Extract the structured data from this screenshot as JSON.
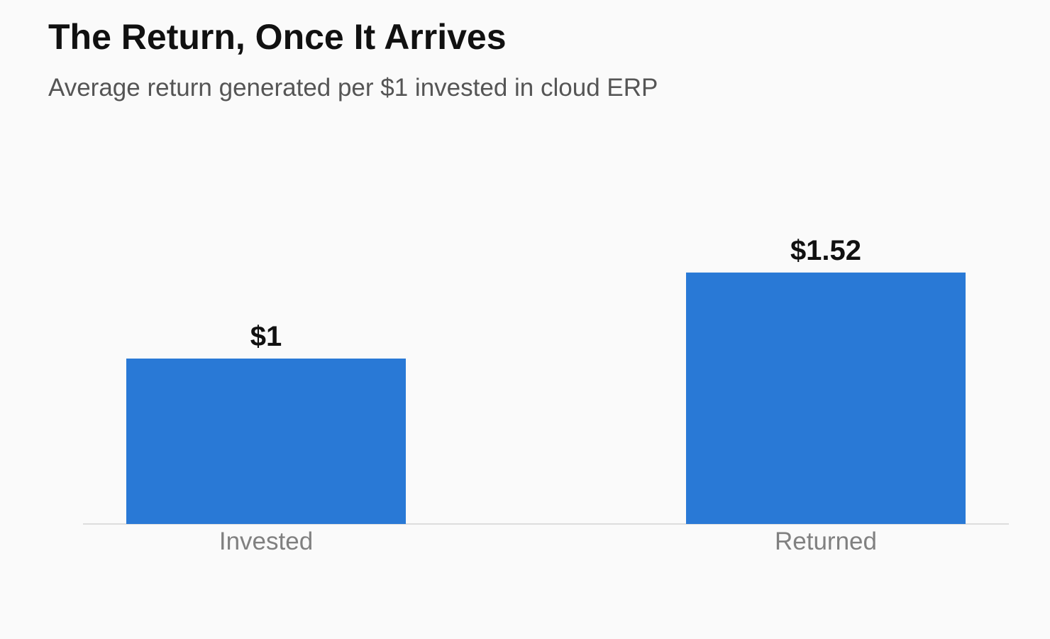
{
  "chart_data": {
    "type": "bar",
    "title": "The Return, Once It Arrives",
    "subtitle": "Average return generated per $1 invested in cloud ERP",
    "categories": [
      "Invested",
      "Returned"
    ],
    "values": [
      1,
      1.52
    ],
    "value_labels": [
      "$1",
      "$1.52"
    ],
    "ylim": [
      0,
      1.6
    ],
    "grid": false,
    "legend": "none",
    "colors": {
      "bar": "#2979d6",
      "baseline": "#dddddd",
      "title": "#111111",
      "subtitle": "#555555",
      "category_label": "#808080",
      "background": "#fafafa"
    }
  }
}
